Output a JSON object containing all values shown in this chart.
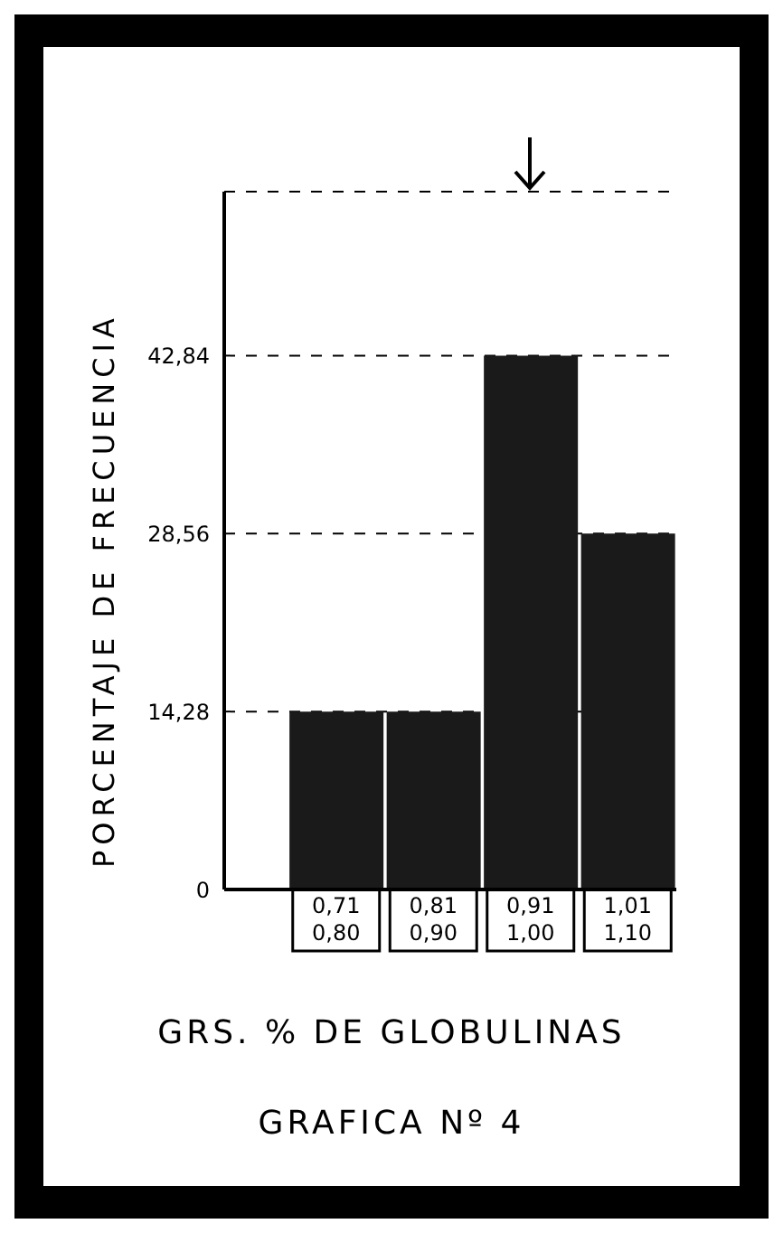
{
  "chart_data": {
    "type": "bar",
    "title": "GRAFICA Nº 4",
    "xlabel": "GRS. % DE GLOBULINAS",
    "ylabel": "PORCENTAJE DE FRECUENCIA",
    "categories": [
      "0,71 0,80",
      "0,81 0,90",
      "0,91 1,00",
      "1,01 1,10"
    ],
    "values": [
      14.28,
      14.28,
      42.84,
      28.56
    ],
    "color": "#1a1a1a",
    "ylim": [
      0,
      56
    ],
    "yticks": [
      0,
      {
        "value": 14.28,
        "label": "14,28"
      },
      {
        "value": 28.56,
        "label": "28,56"
      },
      {
        "value": 42.84,
        "label": "42,84"
      }
    ],
    "grid": "y",
    "line_style": "dashed"
  }
}
